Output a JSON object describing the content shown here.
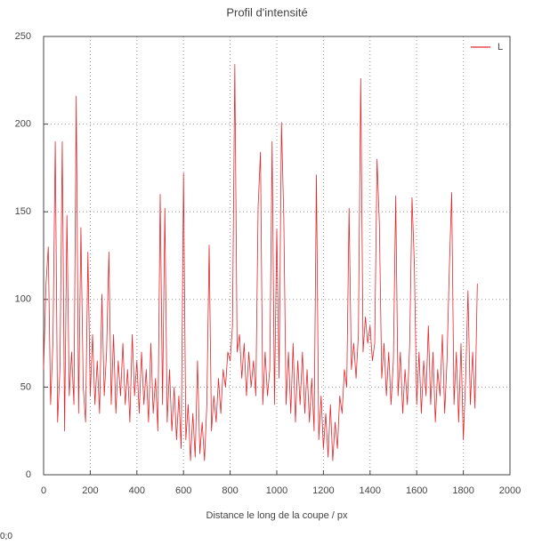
{
  "chart_data": {
    "type": "line",
    "title": "Profil d'intensité",
    "x_label": "Distance le long de la coupe / px",
    "x": [
      0,
      10,
      20,
      30,
      40,
      50,
      60,
      70,
      80,
      90,
      100,
      110,
      120,
      130,
      140,
      150,
      160,
      170,
      180,
      190,
      200,
      210,
      220,
      230,
      240,
      250,
      260,
      270,
      280,
      290,
      300,
      310,
      320,
      330,
      340,
      350,
      360,
      370,
      380,
      390,
      400,
      410,
      420,
      430,
      440,
      450,
      460,
      470,
      480,
      490,
      500,
      510,
      520,
      530,
      540,
      550,
      560,
      570,
      580,
      590,
      600,
      610,
      620,
      630,
      640,
      650,
      660,
      670,
      680,
      690,
      700,
      710,
      720,
      730,
      740,
      750,
      760,
      770,
      780,
      790,
      800,
      810,
      820,
      830,
      840,
      850,
      860,
      870,
      880,
      890,
      900,
      910,
      920,
      930,
      940,
      950,
      960,
      970,
      980,
      990,
      1000,
      1010,
      1020,
      1030,
      1040,
      1050,
      1060,
      1070,
      1080,
      1090,
      1100,
      1110,
      1120,
      1130,
      1140,
      1150,
      1160,
      1170,
      1180,
      1190,
      1200,
      1210,
      1220,
      1230,
      1240,
      1250,
      1260,
      1270,
      1280,
      1290,
      1300,
      1310,
      1320,
      1330,
      1340,
      1350,
      1360,
      1370,
      1380,
      1390,
      1400,
      1410,
      1420,
      1430,
      1440,
      1450,
      1460,
      1470,
      1480,
      1490,
      1500,
      1510,
      1520,
      1530,
      1540,
      1550,
      1560,
      1570,
      1580,
      1590,
      1600,
      1610,
      1620,
      1630,
      1640,
      1650,
      1660,
      1670,
      1680,
      1690,
      1700,
      1710,
      1720,
      1730,
      1740,
      1750,
      1760,
      1770,
      1780,
      1790,
      1800,
      1810,
      1820,
      1830,
      1840,
      1850,
      1860
    ],
    "series": [
      {
        "name": "L",
        "color": "#e3262b",
        "values": [
          60,
          108,
          130,
          40,
          75,
          190,
          30,
          60,
          190,
          25,
          148,
          45,
          70,
          40,
          216,
          35,
          141,
          50,
          30,
          127,
          45,
          80,
          40,
          65,
          35,
          103,
          45,
          70,
          127,
          40,
          80,
          35,
          65,
          45,
          75,
          40,
          60,
          30,
          80,
          45,
          65,
          35,
          70,
          40,
          60,
          30,
          75,
          35,
          55,
          25,
          160,
          40,
          152,
          30,
          60,
          25,
          50,
          20,
          45,
          15,
          172,
          20,
          40,
          8,
          35,
          10,
          65,
          12,
          30,
          8,
          40,
          131,
          25,
          45,
          30,
          55,
          35,
          60,
          50,
          70,
          65,
          85,
          234,
          70,
          80,
          55,
          75,
          45,
          70,
          50,
          65,
          45,
          153,
          184,
          40,
          70,
          45,
          60,
          190,
          40,
          140,
          55,
          201,
          147,
          40,
          70,
          35,
          75,
          30,
          65,
          40,
          70,
          35,
          60,
          30,
          55,
          25,
          171,
          20,
          45,
          15,
          35,
          10,
          40,
          8,
          30,
          15,
          45,
          35,
          60,
          50,
          152,
          60,
          75,
          55,
          80,
          226,
          70,
          90,
          75,
          85,
          65,
          75,
          180,
          143,
          55,
          75,
          45,
          70,
          40,
          65,
          159,
          45,
          70,
          35,
          60,
          40,
          75,
          158,
          120,
          40,
          70,
          35,
          65,
          45,
          85,
          40,
          70,
          30,
          60,
          45,
          80,
          35,
          65,
          118,
          161,
          40,
          70,
          30,
          75,
          20,
          55,
          105,
          40,
          70,
          38,
          109
        ]
      }
    ],
    "xlim": [
      0,
      2000
    ],
    "ylim": [
      0,
      250
    ],
    "xticks": [
      0,
      200,
      400,
      600,
      800,
      1000,
      1200,
      1400,
      1600,
      1800,
      2000
    ],
    "yticks": [
      0,
      50,
      100,
      150,
      200,
      250
    ],
    "grid": true,
    "legend": "upper right",
    "status": "0;0"
  }
}
